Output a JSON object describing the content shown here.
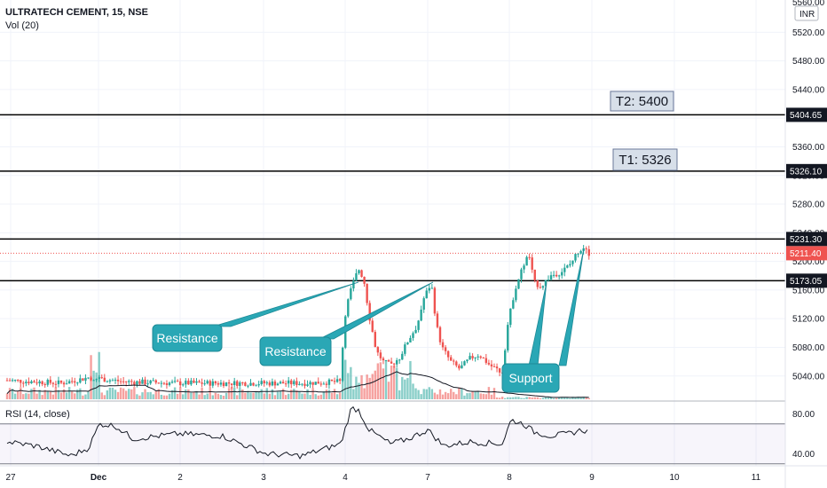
{
  "header": {
    "symbol": "ULTRATECH CEMENT, 15, NSE",
    "volume_indicator": "Vol (20)",
    "rsi_indicator": "RSI (14, close)"
  },
  "currency_label": "INR",
  "chart_data": {
    "type": "candlestick",
    "price_axis": {
      "range": [
        5005,
        5565
      ],
      "ticks": [
        "5520.00",
        "5480.00",
        "5440.00",
        "5400.00",
        "5360.00",
        "5320.00",
        "5280.00",
        "5240.00",
        "5200.00",
        "5160.00",
        "5120.00",
        "5080.00",
        "5040.00"
      ],
      "top_tick": "5560.00"
    },
    "time_axis": {
      "labels": [
        "27",
        "Dec",
        "2",
        "3",
        "4",
        "7",
        "8",
        "9",
        "10",
        "11"
      ]
    },
    "horizontal_levels": [
      {
        "price": 5404.65,
        "label": "5404.65"
      },
      {
        "price": 5326.1,
        "label": "5326.10"
      },
      {
        "price": 5231.3,
        "label": "5231.30"
      },
      {
        "price": 5173.05,
        "label": "5173.05"
      }
    ],
    "last_price": {
      "price": 5211.4,
      "label": "5211.40",
      "color": "#ef5350"
    },
    "targets": [
      {
        "label": "T2: 5400",
        "level": 5404.65
      },
      {
        "label": "T1: 5326",
        "level": 5326.1
      }
    ],
    "callouts": [
      {
        "label": "Resistance"
      },
      {
        "label": "Resistance"
      },
      {
        "label": "Support"
      }
    ],
    "rsi_axis": {
      "range": [
        28,
        92
      ],
      "ticks": [
        "80.00",
        "40.00"
      ],
      "band": [
        70,
        30
      ]
    },
    "colors": {
      "up": "#26a69a",
      "down": "#ef5350",
      "level_line": "#000000",
      "callout": "#2aa7b5",
      "target_box": "#d7dfe9"
    }
  }
}
